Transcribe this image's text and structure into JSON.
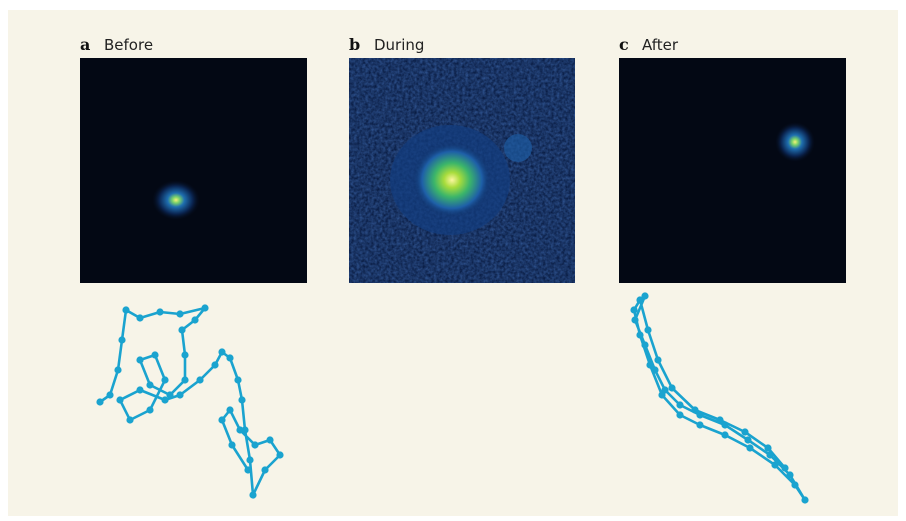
{
  "panels": [
    {
      "letter": "a",
      "label": "Before"
    },
    {
      "letter": "b",
      "label": "During"
    },
    {
      "letter": "c",
      "label": "After"
    }
  ]
}
